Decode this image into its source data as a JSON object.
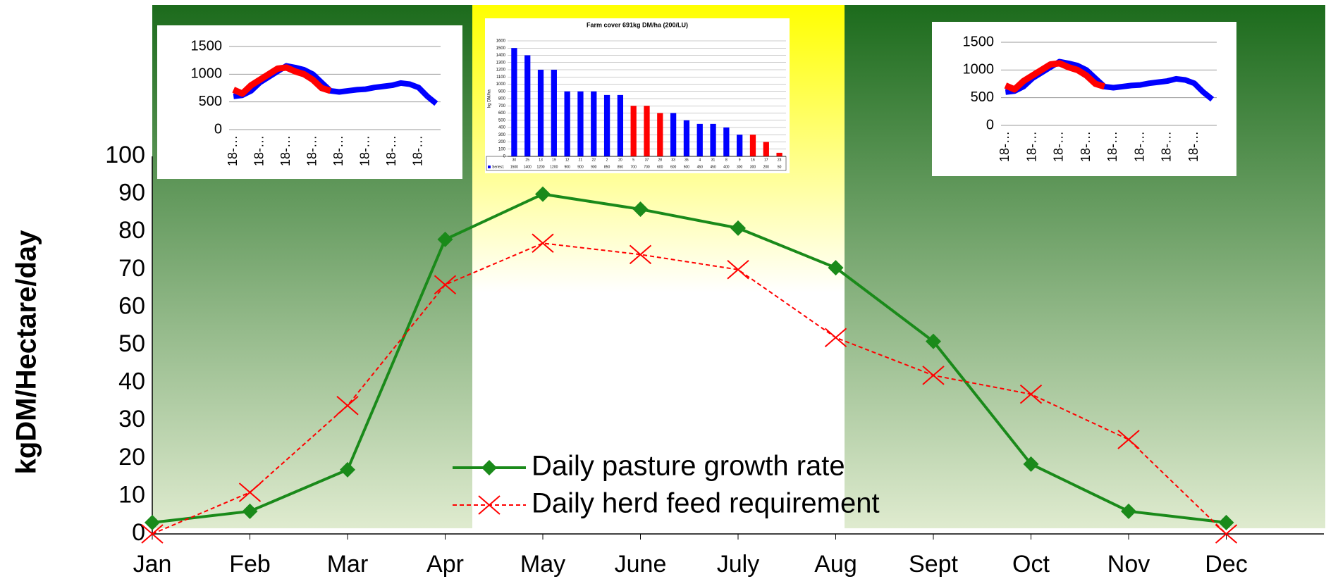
{
  "chart_data": [
    {
      "type": "line",
      "y_label": "kgDM/Hectare/day",
      "categories": [
        "Jan",
        "Feb",
        "Mar",
        "Apr",
        "May",
        "June",
        "July",
        "Aug",
        "Sept",
        "Oct",
        "Nov",
        "Dec"
      ],
      "series": [
        {
          "name": "Daily pasture growth rate",
          "color": "#1a8a1a",
          "marker": "diamond",
          "values": [
            3,
            6,
            17,
            78,
            90,
            86,
            81,
            70.5,
            51,
            18.5,
            6,
            3
          ]
        },
        {
          "name": "Daily herd feed requirement",
          "color": "#ff0000",
          "marker": "x",
          "dashed": true,
          "values": [
            0,
            11,
            34,
            66,
            77,
            74,
            70,
            52,
            42,
            37,
            25,
            0
          ]
        }
      ],
      "ylim": [
        0,
        100
      ],
      "yticks": [
        0,
        10,
        20,
        30,
        40,
        50,
        60,
        70,
        80,
        90,
        100
      ]
    },
    {
      "type": "inset-line",
      "categories": [
        "18-…",
        null,
        null,
        "18-…",
        null,
        null,
        "18-…",
        null,
        null,
        "18-…",
        null,
        null,
        "18-…",
        null,
        null,
        "18-…",
        null,
        null,
        "18-…",
        null,
        null,
        "18-…",
        null,
        null
      ],
      "series": [
        {
          "color": "#0000ff",
          "values": [
            600,
            620,
            700,
            850,
            950,
            1050,
            1150,
            1120,
            1080,
            1000,
            850,
            700,
            680,
            700,
            720,
            730,
            760,
            780,
            800,
            840,
            820,
            760,
            600,
            470
          ]
        },
        {
          "color": "#ff0000",
          "values": [
            720,
            650,
            800,
            900,
            1000,
            1100,
            1120,
            1050,
            1000,
            900,
            750,
            700,
            null,
            null,
            null,
            null,
            null,
            null,
            null,
            null,
            null,
            null,
            null,
            null
          ]
        }
      ],
      "ylim": [
        0,
        1500
      ],
      "yticks": [
        0,
        500,
        1000,
        1500
      ],
      "grid": true
    },
    {
      "type": "bar",
      "title": "Farm cover 691kg DM/ha (200/LU)",
      "y_label": "kg DM/ha",
      "categories": [
        "30",
        "25",
        "13",
        "19",
        "12",
        "21",
        "22",
        "2",
        "20",
        "5",
        "37",
        "28",
        "33",
        "36",
        "4",
        "31",
        "8",
        "9",
        "16",
        "17",
        "23"
      ],
      "series": [
        {
          "name": "Series1",
          "color": "#0000ff",
          "values": [
            1500,
            1400,
            1200,
            1200,
            900,
            900,
            900,
            850,
            850,
            700,
            700,
            600,
            600,
            500,
            450,
            450,
            400,
            300,
            300,
            200,
            50
          ],
          "colors": [
            "#0000ff",
            "#0000ff",
            "#0000ff",
            "#0000ff",
            "#0000ff",
            "#0000ff",
            "#0000ff",
            "#0000ff",
            "#0000ff",
            "#ff0000",
            "#ff0000",
            "#ff0000",
            "#0000ff",
            "#0000ff",
            "#0000ff",
            "#0000ff",
            "#0000ff",
            "#0000ff",
            "#ff0000",
            "#ff0000",
            "#ff0000"
          ]
        }
      ],
      "ylim": [
        0,
        1600
      ],
      "yticks": [
        0,
        100,
        200,
        300,
        400,
        500,
        600,
        700,
        800,
        900,
        1000,
        1100,
        1200,
        1300,
        1400,
        1500,
        1600
      ],
      "grid": true
    },
    {
      "type": "inset-line",
      "categories": [
        "18-…",
        null,
        null,
        "18-…",
        null,
        null,
        "18-…",
        null,
        null,
        "18-…",
        null,
        null,
        "18-…",
        null,
        null,
        "18-…",
        null,
        null,
        "18-…",
        null,
        null,
        "18-…",
        null,
        null
      ],
      "series": [
        {
          "color": "#0000ff",
          "values": [
            600,
            620,
            700,
            850,
            950,
            1050,
            1150,
            1120,
            1080,
            1000,
            850,
            700,
            680,
            700,
            720,
            730,
            760,
            780,
            800,
            840,
            820,
            760,
            600,
            470
          ]
        },
        {
          "color": "#ff0000",
          "values": [
            720,
            650,
            800,
            900,
            1000,
            1100,
            1120,
            1050,
            1000,
            900,
            750,
            700,
            null,
            null,
            null,
            null,
            null,
            null,
            null,
            null,
            null,
            null,
            null,
            null
          ]
        }
      ],
      "ylim": [
        0,
        1500
      ],
      "yticks": [
        0,
        500,
        1000,
        1500
      ],
      "grid": true
    }
  ]
}
